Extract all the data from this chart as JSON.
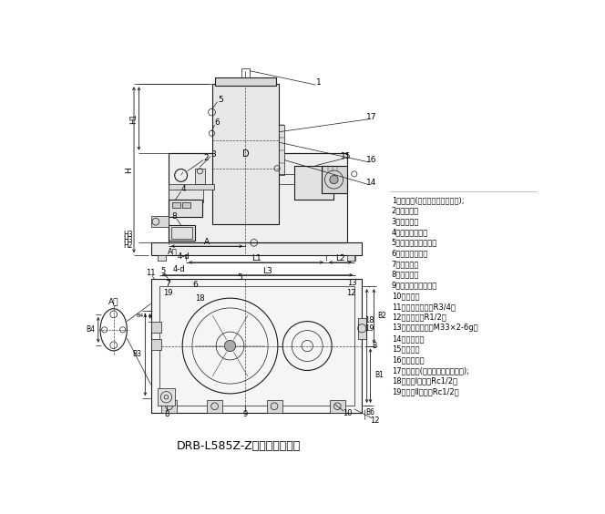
{
  "title": "DRB-L585Z-Z型电动泵外形图",
  "title_fontsize": 9,
  "bg_color": "#ffffff",
  "line_color": "#1a1a1a",
  "legend_items": [
    "1、排气阀(贮油器活塞上部空气);",
    "2、压力表；",
    "3、安全阀；",
    "4、电磁换向阀；",
    "5、贮油器高位开关；",
    "6、贮油器接口；",
    "7、泵接口；",
    "8、接线盒；",
    "9、贮油器低位开关；",
    "10、吊环；",
    "11、润滑油补给口R3/4；",
    "12、放油螺塞R1/2；",
    "13、润滑脂补给口M33×2-6g；",
    "14、油位计；",
    "15、泵体；",
    "16、贮油器；",
    "17、排气阀(贮油器活塞下部空气);",
    "18、管路Ⅰ出油口Rc1/2；",
    "19、管路Ⅱ出油口Rc1/2。"
  ]
}
